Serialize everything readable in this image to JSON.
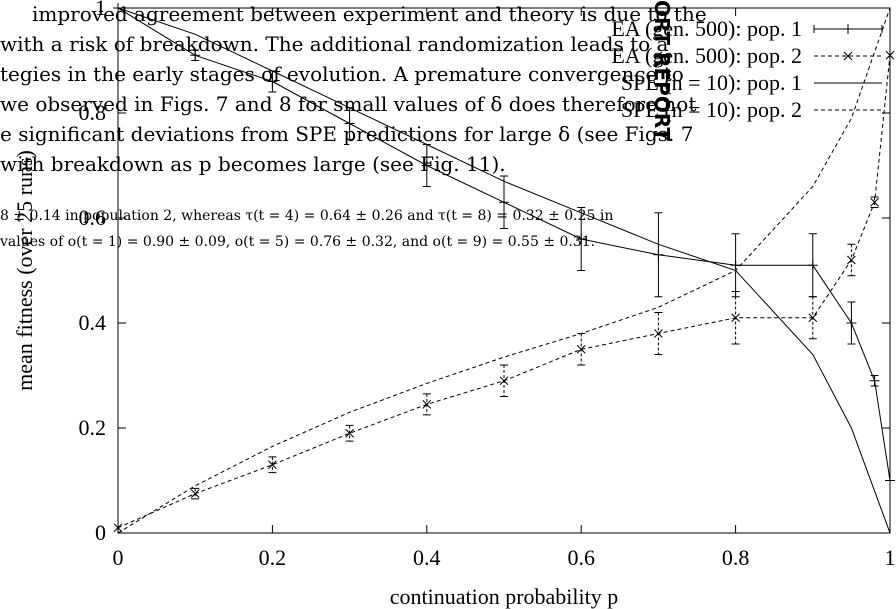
{
  "overlay_text": {
    "lines": [
      "improved agreement between experiment and theory is due to the",
      "with a risk of breakdown. The additional randomization leads to a",
      "tegies in the early stages of evolution. A premature convergence to",
      "we observed in Figs. 7 and 8 for small values of δ does therefore not",
      "e significant deviations from SPE predictions for large δ (see Figs. 7",
      "with breakdown as p becomes large (see Fig. 11)."
    ],
    "small_lines": [
      "8 ± 0.14 in population 2, whereas τ(t = 4) = 0.64 ± 0.26 and τ(t = 8) = 0.32 ± 0.25 in",
      "values of o(t = 1) = 0.90 ± 0.09, o(t = 5) = 0.76 ± 0.32, and o(t = 9) = 0.55 ± 0.31."
    ],
    "stamp": "ORT REPORT"
  },
  "chart_data": {
    "type": "line",
    "title": "",
    "xlabel": "continuation probability p",
    "ylabel": "mean fitness (over 25 runs)",
    "xlim": [
      0,
      1
    ],
    "ylim": [
      0,
      1
    ],
    "xticks": [
      "0",
      "0.2",
      "0.4",
      "0.6",
      "0.8",
      "1"
    ],
    "yticks": [
      "0",
      "0.2",
      "0.4",
      "0.6",
      "0.8",
      "1"
    ],
    "legend_position": "top-right",
    "series": [
      {
        "name": "EA (gen. 500): pop. 1",
        "marker": "plus",
        "line_style": "solid",
        "points": [
          {
            "x": 0,
            "y": 1.0,
            "err": 0.0
          },
          {
            "x": 0.1,
            "y": 0.91,
            "err": 0.01
          },
          {
            "x": 0.2,
            "y": 0.86,
            "err": 0.02
          },
          {
            "x": 0.3,
            "y": 0.78,
            "err": 0.03
          },
          {
            "x": 0.4,
            "y": 0.7,
            "err": 0.04
          },
          {
            "x": 0.5,
            "y": 0.63,
            "err": 0.05
          },
          {
            "x": 0.6,
            "y": 0.56,
            "err": 0.06
          },
          {
            "x": 0.7,
            "y": 0.53,
            "err": 0.08
          },
          {
            "x": 0.8,
            "y": 0.51,
            "err": 0.06
          },
          {
            "x": 0.9,
            "y": 0.51,
            "err": 0.06
          },
          {
            "x": 0.95,
            "y": 0.4,
            "err": 0.04
          },
          {
            "x": 0.98,
            "y": 0.29,
            "err": 0.01
          },
          {
            "x": 1.0,
            "y": 0.1,
            "err": 0.0
          }
        ]
      },
      {
        "name": "EA (gen. 500): pop. 2",
        "marker": "cross",
        "line_style": "dashed",
        "points": [
          {
            "x": 0,
            "y": 0.01,
            "err": 0.0
          },
          {
            "x": 0.1,
            "y": 0.075,
            "err": 0.01
          },
          {
            "x": 0.2,
            "y": 0.13,
            "err": 0.015
          },
          {
            "x": 0.3,
            "y": 0.19,
            "err": 0.015
          },
          {
            "x": 0.4,
            "y": 0.245,
            "err": 0.02
          },
          {
            "x": 0.5,
            "y": 0.29,
            "err": 0.03
          },
          {
            "x": 0.6,
            "y": 0.35,
            "err": 0.03
          },
          {
            "x": 0.7,
            "y": 0.38,
            "err": 0.04
          },
          {
            "x": 0.8,
            "y": 0.41,
            "err": 0.05
          },
          {
            "x": 0.9,
            "y": 0.41,
            "err": 0.04
          },
          {
            "x": 0.95,
            "y": 0.52,
            "err": 0.03
          },
          {
            "x": 0.98,
            "y": 0.63,
            "err": 0.01
          },
          {
            "x": 1.0,
            "y": 0.91,
            "err": 0.0
          }
        ]
      },
      {
        "name": "SPE (n = 10): pop. 1",
        "line_style": "solid",
        "points": [
          {
            "x": 0,
            "y": 1.0
          },
          {
            "x": 0.1,
            "y": 0.95
          },
          {
            "x": 0.2,
            "y": 0.88
          },
          {
            "x": 0.3,
            "y": 0.81
          },
          {
            "x": 0.4,
            "y": 0.74
          },
          {
            "x": 0.5,
            "y": 0.67
          },
          {
            "x": 0.6,
            "y": 0.61
          },
          {
            "x": 0.7,
            "y": 0.55
          },
          {
            "x": 0.8,
            "y": 0.5
          },
          {
            "x": 0.9,
            "y": 0.34
          },
          {
            "x": 0.95,
            "y": 0.2
          },
          {
            "x": 1.0,
            "y": 0.0
          }
        ]
      },
      {
        "name": "SPE (n = 10): pop. 2",
        "line_style": "dashed",
        "points": [
          {
            "x": 0,
            "y": 0.0
          },
          {
            "x": 0.1,
            "y": 0.09
          },
          {
            "x": 0.2,
            "y": 0.165
          },
          {
            "x": 0.3,
            "y": 0.23
          },
          {
            "x": 0.4,
            "y": 0.285
          },
          {
            "x": 0.5,
            "y": 0.335
          },
          {
            "x": 0.6,
            "y": 0.38
          },
          {
            "x": 0.7,
            "y": 0.43
          },
          {
            "x": 0.8,
            "y": 0.5
          },
          {
            "x": 0.9,
            "y": 0.66
          },
          {
            "x": 0.95,
            "y": 0.79
          },
          {
            "x": 1.0,
            "y": 1.0
          }
        ]
      }
    ]
  }
}
